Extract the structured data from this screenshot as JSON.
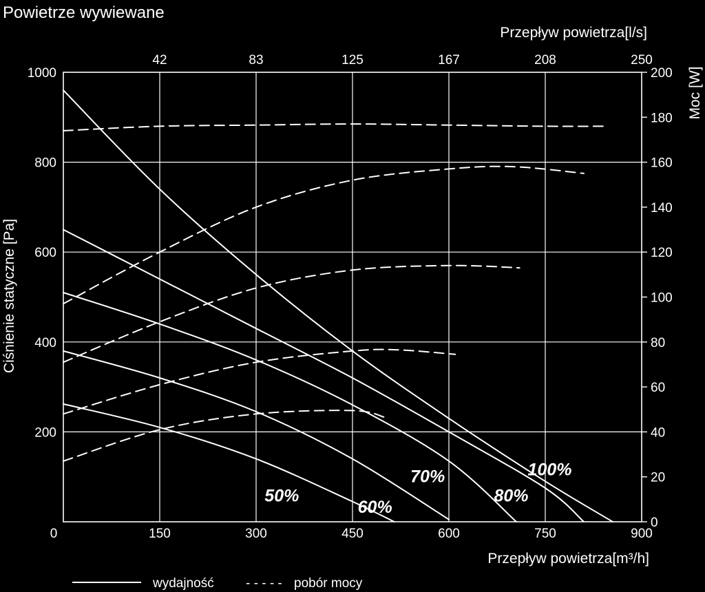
{
  "chart_data": {
    "type": "line",
    "title": "Powietrze wywiewane",
    "xlabel": "Przepływ powietrza[m³/h]",
    "xlabel_top": "Przepływ powietrza[l/s]",
    "ylabel": "Ciśnienie statyczne [Pa]",
    "ylabel_right": "Moc [W]",
    "xlim": [
      0,
      900
    ],
    "ylim": [
      0,
      1000
    ],
    "ylim_right": [
      0,
      200
    ],
    "x_ticks": [
      "0",
      "150",
      "300",
      "450",
      "600",
      "750",
      "900"
    ],
    "x_ticks_top": [
      "42",
      "83",
      "125",
      "167",
      "208",
      "250"
    ],
    "y_ticks": [
      "200",
      "400",
      "600",
      "800",
      "1000"
    ],
    "y_ticks_right": [
      "0",
      "20",
      "40",
      "60",
      "80",
      "100",
      "120",
      "140",
      "160",
      "180",
      "200"
    ],
    "grid": true,
    "legend": {
      "position": "bottom",
      "solid_label": "wydajność",
      "dashed_prefix": "- - - - -",
      "dashed_label": "pobór mocy"
    },
    "series": [
      {
        "label": "100%",
        "style": "solid",
        "axis": "left",
        "label_at": [
          757,
          103
        ],
        "x": [
          0,
          150,
          300,
          450,
          600,
          750,
          855
        ],
        "y": [
          960,
          740,
          550,
          380,
          230,
          90,
          0
        ]
      },
      {
        "label": "80%",
        "style": "solid",
        "axis": "left",
        "label_at": [
          697,
          45
        ],
        "x": [
          0,
          150,
          300,
          450,
          600,
          750,
          810
        ],
        "y": [
          650,
          540,
          430,
          320,
          200,
          75,
          0
        ]
      },
      {
        "label": "70%",
        "style": "solid",
        "axis": "left",
        "label_at": [
          567,
          88
        ],
        "x": [
          0,
          150,
          300,
          450,
          600,
          705
        ],
        "y": [
          510,
          440,
          360,
          260,
          135,
          0
        ]
      },
      {
        "label": "60%",
        "style": "solid",
        "axis": "left",
        "label_at": [
          485,
          20
        ],
        "x": [
          0,
          150,
          300,
          450,
          600
        ],
        "y": [
          380,
          320,
          245,
          140,
          5
        ]
      },
      {
        "label": "50%",
        "style": "solid",
        "axis": "left",
        "label_at": [
          340,
          45
        ],
        "x": [
          0,
          150,
          300,
          450,
          515
        ],
        "y": [
          262,
          210,
          140,
          45,
          0
        ]
      },
      {
        "label": "100%",
        "style": "dashed",
        "axis": "right",
        "label_at": [
          773,
          900
        ],
        "x": [
          0,
          150,
          300,
          450,
          600,
          750,
          840
        ],
        "y": [
          174,
          176,
          176.5,
          177,
          176.5,
          176,
          176
        ]
      },
      {
        "label": "80%",
        "style": "dashed",
        "axis": "right",
        "label_at": [
          760,
          743
        ],
        "x": [
          0,
          150,
          300,
          450,
          600,
          700,
          810
        ],
        "y": [
          97,
          120,
          140,
          152,
          157,
          158,
          155
        ]
      },
      {
        "label": "70%",
        "style": "dashed",
        "axis": "right",
        "label_at": [
          647,
          525
        ],
        "x": [
          0,
          150,
          300,
          450,
          600,
          710
        ],
        "y": [
          71,
          89,
          104,
          112,
          114,
          113
        ]
      },
      {
        "label": "60%",
        "style": "dashed",
        "axis": "right",
        "label_at": [
          541,
          432
        ],
        "x": [
          0,
          150,
          300,
          450,
          520,
          610
        ],
        "y": [
          48,
          61,
          71,
          76,
          76.5,
          74.5
        ]
      },
      {
        "label": "50%",
        "style": "dashed",
        "axis": "right",
        "label_at": [
          457,
          255
        ],
        "x": [
          0,
          150,
          300,
          450,
          500
        ],
        "y": [
          27,
          41,
          48,
          49.5,
          46.5
        ]
      }
    ]
  }
}
